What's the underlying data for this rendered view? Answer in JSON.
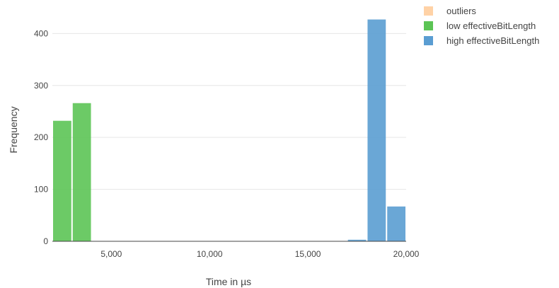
{
  "chart_data": {
    "type": "bar",
    "xlabel": "Time in µs",
    "ylabel": "Frequency",
    "xlim": [
      2000,
      20000
    ],
    "ylim": [
      0,
      440
    ],
    "x_ticks": [
      {
        "value": 5000,
        "label": "5,000"
      },
      {
        "value": 10000,
        "label": "10,000"
      },
      {
        "value": 15000,
        "label": "15,000"
      },
      {
        "value": 20000,
        "label": "20,000"
      }
    ],
    "y_ticks": [
      {
        "value": 0,
        "label": "0"
      },
      {
        "value": 100,
        "label": "100"
      },
      {
        "value": 200,
        "label": "200"
      },
      {
        "value": 300,
        "label": "300"
      },
      {
        "value": 400,
        "label": "400"
      }
    ],
    "grid": true,
    "legend_position": "top-right",
    "series": [
      {
        "name": "outliers",
        "color": "#ffbf80",
        "muted": true,
        "bins": []
      },
      {
        "name": "low effectiveBitLength",
        "color": "#5cc455",
        "bins": [
          {
            "x0": 2000,
            "x1": 3000,
            "count": 232
          },
          {
            "x0": 3000,
            "x1": 4000,
            "count": 266
          }
        ]
      },
      {
        "name": "high effectiveBitLength",
        "color": "#5a9dd2",
        "bins": [
          {
            "x0": 17000,
            "x1": 18000,
            "count": 3
          },
          {
            "x0": 18000,
            "x1": 19000,
            "count": 427
          },
          {
            "x0": 19000,
            "x1": 20000,
            "count": 67
          }
        ]
      }
    ]
  }
}
